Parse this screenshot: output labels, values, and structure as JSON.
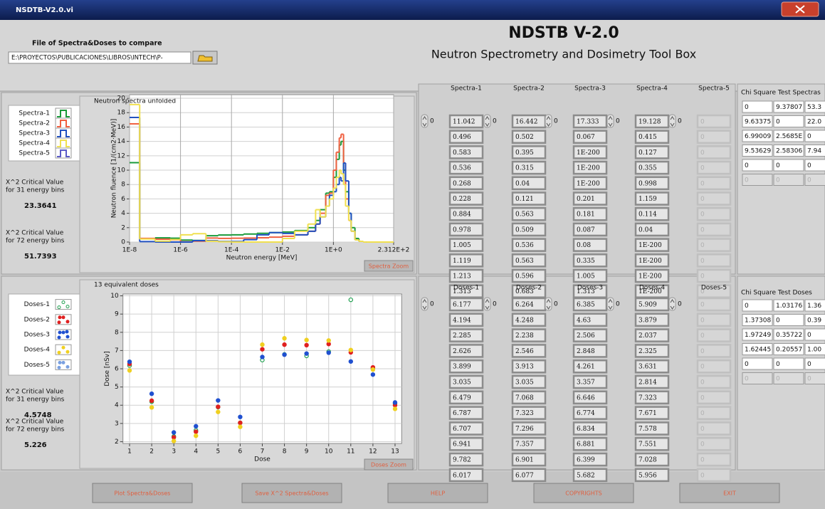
{
  "window": {
    "title": "NSDTB-V2.0.vi"
  },
  "header": {
    "file_label": "File of Spectra&Doses to compare",
    "file_path": "E:\\PROYECTOS\\PUBLICACIONES\\LIBROS\\INTECH\\P-",
    "title": "NDSTB V-2.0",
    "subtitle": "Neutron Spectrometry and Dosimetry Tool Box"
  },
  "spectra_panel": {
    "critical": [
      {
        "line1": "X^2 Critical Value",
        "line2": "for 31 energy bins",
        "value": "23.3641"
      },
      {
        "line1": "X^2 Critical Value",
        "line2": "for 72 energy bins",
        "value": "51.7393"
      }
    ],
    "zoom_button": "Spectra Zoom"
  },
  "spectra_chart": {
    "type": "line",
    "step": true,
    "log_x": true,
    "grid": true,
    "title": "Neutron spectra unfolded",
    "x_label": "Neutron energy [MeV]",
    "y_label": "Neutron fluence [1/(cm2·MeV)]",
    "bin_edges": [
      1e-08,
      2.5e-08,
      1e-07,
      4e-07,
      1e-06,
      3e-06,
      1e-05,
      3e-05,
      0.0001,
      0.0003,
      0.001,
      0.003,
      0.01,
      0.03,
      0.1,
      0.2,
      0.3,
      0.5,
      0.7,
      1,
      1.3,
      1.7,
      2,
      2.5,
      3,
      4,
      5,
      7,
      10,
      15,
      20,
      231.2
    ],
    "xlim": [
      1e-08,
      231.2
    ],
    "xticks": [
      {
        "value": 1e-08,
        "label": "1E-8"
      },
      {
        "value": 1e-06,
        "label": "1E-6"
      },
      {
        "value": 0.0001,
        "label": "1E-4"
      },
      {
        "value": 0.01,
        "label": "1E-2"
      },
      {
        "value": 1,
        "label": "1E+0"
      },
      {
        "value": 231.2,
        "label": "2.312E+2"
      }
    ],
    "ylim": [
      0,
      20.5
    ],
    "yticks": [
      0,
      2,
      4,
      6,
      8,
      10,
      12,
      14,
      16,
      18,
      20
    ],
    "series": [
      {
        "name": "Spectra-1",
        "color": "#1a9a3a",
        "values": [
          11.042,
          0.496,
          0.583,
          0.536,
          0.268,
          0.228,
          0.884,
          0.978,
          1.005,
          1.119,
          1.213,
          1.313,
          1.4,
          1.6,
          2.0,
          3.0,
          4.5,
          6.8,
          7.0,
          9.0,
          11.5,
          13.5,
          14.0,
          10.0,
          7.0,
          4.0,
          2.0,
          0.5,
          0.1,
          0,
          0
        ]
      },
      {
        "name": "Spectra-2",
        "color": "#f06040",
        "values": [
          16.442,
          0.502,
          0.395,
          0.315,
          0.04,
          0.121,
          0.563,
          0.509,
          0.536,
          0.563,
          0.596,
          0.683,
          0.8,
          1.0,
          1.5,
          2.5,
          4.0,
          6.5,
          6.8,
          10.0,
          12.5,
          14.5,
          15.0,
          11.0,
          6.0,
          3.0,
          1.5,
          0.3,
          0.1,
          0,
          0
        ]
      },
      {
        "name": "Spectra-3",
        "color": "#2050c0",
        "values": [
          17.333,
          0.067,
          1e-200,
          1e-200,
          1e-200,
          0.201,
          0.181,
          0.087,
          0.08,
          0.335,
          1.005,
          1.313,
          1.2,
          1.0,
          1.5,
          2.5,
          3.5,
          5.0,
          6.5,
          7.0,
          8.0,
          9.0,
          8.5,
          11.0,
          8.5,
          4.0,
          1.5,
          0.3,
          0.1,
          0,
          0
        ]
      },
      {
        "name": "Spectra-4",
        "color": "#f0e050",
        "values": [
          19.128,
          0.415,
          0.127,
          0.355,
          0.998,
          1.159,
          0.114,
          0.04,
          1e-200,
          1e-200,
          1e-200,
          1e-200,
          0.5,
          1.5,
          2.5,
          4.5,
          3.5,
          5.0,
          6.0,
          7.5,
          9.0,
          10.0,
          9.5,
          8.0,
          5.0,
          3.0,
          1.5,
          0.3,
          0.1,
          0,
          0
        ]
      },
      {
        "name": "Spectra-5",
        "color": "#5a5ac8"
      }
    ]
  },
  "spectra_table": {
    "columns": [
      {
        "header": "Spectra-1",
        "index": "0",
        "values": [
          "11.042",
          "0.496",
          "0.583",
          "0.536",
          "0.268",
          "0.228",
          "0.884",
          "0.978",
          "1.005",
          "1.119",
          "1.213",
          "1.313"
        ]
      },
      {
        "header": "Spectra-2",
        "index": "0",
        "values": [
          "16.442",
          "0.502",
          "0.395",
          "0.315",
          "0.04",
          "0.121",
          "0.563",
          "0.509",
          "0.536",
          "0.563",
          "0.596",
          "0.683"
        ]
      },
      {
        "header": "Spectra-3",
        "index": "0",
        "values": [
          "17.333",
          "0.067",
          "1E-200",
          "1E-200",
          "1E-200",
          "0.201",
          "0.181",
          "0.087",
          "0.08",
          "0.335",
          "1.005",
          "1.313"
        ]
      },
      {
        "header": "Spectra-4",
        "index": "0",
        "values": [
          "19.128",
          "0.415",
          "0.127",
          "0.355",
          "0.998",
          "1.159",
          "0.114",
          "0.04",
          "1E-200",
          "1E-200",
          "1E-200",
          "1E-200"
        ]
      },
      {
        "header": "Spectra-5",
        "index": "0",
        "disabled": true,
        "values": [
          "0",
          "0",
          "0",
          "0",
          "0",
          "0",
          "0",
          "0",
          "0",
          "0",
          "0",
          "0"
        ]
      }
    ]
  },
  "chi_spectra": {
    "title": "Chi Square Test Spectras",
    "rows": [
      [
        "0",
        "9.37807",
        "53.3"
      ],
      [
        "9.63375",
        "0",
        "22.0"
      ],
      [
        "6.99009",
        "2.5685E",
        "0"
      ],
      [
        "9.53629",
        "2.58306",
        "7.94"
      ],
      [
        "0",
        "0",
        "0"
      ],
      [
        "0",
        "0",
        "0"
      ]
    ],
    "disabled_rows": [
      5
    ]
  },
  "doses_panel": {
    "critical": [
      {
        "line1": "X^2 Critical Value",
        "line2": "for 31 energy bins",
        "value": "4.5748"
      },
      {
        "line1": "X^2 Critical Value",
        "line2": "for 72 energy bins",
        "value": "5.226"
      }
    ],
    "zoom_button": "Doses Zoom"
  },
  "doses_chart": {
    "type": "scatter",
    "grid": true,
    "title": "13 equivalent doses",
    "x_label": "Dose",
    "y_label": "Dose [nSv]",
    "x": [
      1,
      2,
      3,
      4,
      5,
      6,
      7,
      8,
      9,
      10,
      11,
      12,
      13
    ],
    "xlim": [
      0.7,
      13.3
    ],
    "xticks": [
      1,
      2,
      3,
      4,
      5,
      6,
      7,
      8,
      9,
      10,
      11,
      12,
      13
    ],
    "ylim": [
      1.9,
      10.1
    ],
    "yticks": [
      2,
      3,
      4,
      5,
      6,
      7,
      8,
      9,
      10
    ],
    "series": [
      {
        "name": "Doses-1",
        "color": "#20a050",
        "hollow": true,
        "values": [
          6.177,
          4.194,
          2.285,
          2.626,
          3.899,
          3.035,
          6.479,
          6.787,
          6.707,
          6.941,
          9.782,
          6.017,
          4.1
        ]
      },
      {
        "name": "Doses-2",
        "color": "#e02020",
        "values": [
          6.264,
          4.248,
          2.238,
          2.546,
          3.913,
          3.035,
          7.068,
          7.323,
          7.296,
          7.357,
          6.901,
          6.077,
          4.0
        ]
      },
      {
        "name": "Doses-3",
        "color": "#2050d0",
        "values": [
          6.385,
          4.63,
          2.506,
          2.848,
          4.261,
          3.357,
          6.646,
          6.774,
          6.834,
          6.881,
          6.399,
          5.682,
          4.15
        ]
      },
      {
        "name": "Doses-4",
        "color": "#f0d020",
        "values": [
          5.909,
          3.879,
          2.037,
          2.325,
          3.631,
          2.814,
          7.323,
          7.671,
          7.578,
          7.551,
          7.028,
          5.956,
          3.8
        ]
      },
      {
        "name": "Doses-5",
        "color": "#7aa0e0"
      }
    ]
  },
  "doses_table": {
    "columns": [
      {
        "header": "Doses-1",
        "index": "0",
        "values": [
          "6.177",
          "4.194",
          "2.285",
          "2.626",
          "3.899",
          "3.035",
          "6.479",
          "6.787",
          "6.707",
          "6.941",
          "9.782",
          "6.017"
        ]
      },
      {
        "header": "Doses-2",
        "index": "0",
        "values": [
          "6.264",
          "4.248",
          "2.238",
          "2.546",
          "3.913",
          "3.035",
          "7.068",
          "7.323",
          "7.296",
          "7.357",
          "6.901",
          "6.077"
        ]
      },
      {
        "header": "Doses-3",
        "index": "0",
        "values": [
          "6.385",
          "4.63",
          "2.506",
          "2.848",
          "4.261",
          "3.357",
          "6.646",
          "6.774",
          "6.834",
          "6.881",
          "6.399",
          "5.682"
        ]
      },
      {
        "header": "Doses-4",
        "index": "0",
        "values": [
          "5.909",
          "3.879",
          "2.037",
          "2.325",
          "3.631",
          "2.814",
          "7.323",
          "7.671",
          "7.578",
          "7.551",
          "7.028",
          "5.956"
        ]
      },
      {
        "header": "Doses-5",
        "index": "0",
        "disabled": true,
        "values": [
          "0",
          "0",
          "0",
          "0",
          "0",
          "0",
          "0",
          "0",
          "0",
          "0",
          "0",
          "0"
        ]
      }
    ]
  },
  "chi_doses": {
    "title": "Chi Square Test Doses",
    "rows": [
      [
        "0",
        "1.03176",
        "1.36"
      ],
      [
        "1.37308",
        "0",
        "0.39"
      ],
      [
        "1.97249",
        "0.35722",
        "0"
      ],
      [
        "1.62445",
        "0.20557",
        "1.00"
      ],
      [
        "0",
        "0",
        "0"
      ],
      [
        "0",
        "0",
        "0"
      ]
    ],
    "disabled_rows": [
      5
    ]
  },
  "buttons": [
    "Plot Spectra&Doses",
    "Save X^2 Spectra&Doses",
    "HELP",
    "COPYRIGHTS",
    "EXIT"
  ]
}
